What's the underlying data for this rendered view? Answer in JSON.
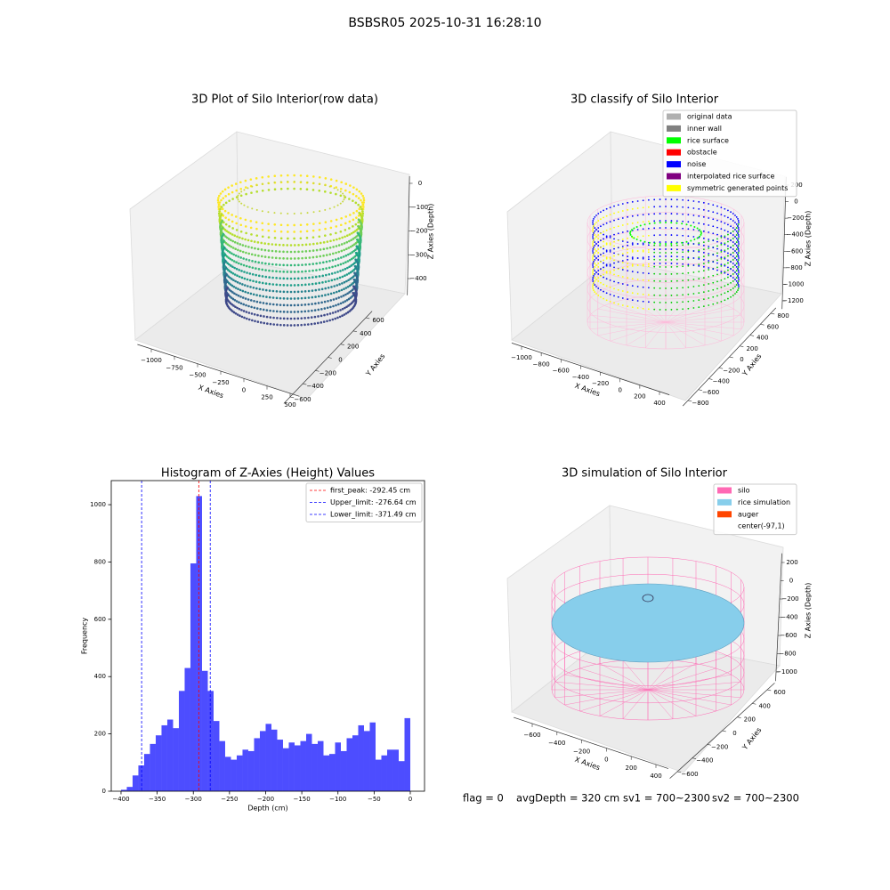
{
  "title": "BSBSR05 2025-10-31 16:28:10",
  "chart_data": [
    {
      "type": "scatter3d",
      "title": "3D Plot of Silo Interior(row data)",
      "xlabel": "X Axies",
      "ylabel": "Y Axies",
      "zlabel": "Z Axies (Depth)",
      "xlim": [
        -1150,
        600
      ],
      "ylim": [
        -700,
        700
      ],
      "zlim": [
        -470,
        30
      ],
      "xticks": [
        {
          "value": -1000,
          "label": "−1000"
        },
        {
          "value": -750,
          "label": "−750"
        },
        {
          "value": -500,
          "label": "−500"
        },
        {
          "value": -250,
          "label": "−250"
        },
        0,
        250,
        500
      ],
      "yticks": [
        {
          "value": -600,
          "label": "−600"
        },
        {
          "value": -400,
          "label": "−400"
        },
        {
          "value": -200,
          "label": "−200"
        },
        0,
        200,
        400,
        600
      ],
      "zticks": [
        0,
        {
          "value": -100,
          "label": "−100"
        },
        {
          "value": -200,
          "label": "−200"
        },
        {
          "value": -300,
          "label": "−300"
        },
        {
          "value": -400,
          "label": "−400"
        }
      ]
    },
    {
      "type": "scatter3d",
      "title": "3D classify of Silo Interior",
      "xlabel": "X Axies",
      "ylabel": "Y Axies",
      "zlabel": "Z Axies (Depth)",
      "xlim": [
        -1100,
        500
      ],
      "ylim": [
        -900,
        900
      ],
      "zlim": [
        -1300,
        300
      ],
      "xticks": [
        {
          "value": -1000,
          "label": "−1000"
        },
        {
          "value": -800,
          "label": "−800"
        },
        {
          "value": -600,
          "label": "−600"
        },
        {
          "value": -400,
          "label": "−400"
        },
        {
          "value": -200,
          "label": "−200"
        },
        0,
        200,
        400
      ],
      "yticks": [
        {
          "value": -800,
          "label": "−800"
        },
        {
          "value": -600,
          "label": "−600"
        },
        {
          "value": -400,
          "label": "−400"
        },
        {
          "value": -200,
          "label": "−200"
        },
        0,
        200,
        400,
        600,
        800
      ],
      "zticks": [
        200,
        0,
        {
          "value": -200,
          "label": "−200"
        },
        {
          "value": -400,
          "label": "−400"
        },
        {
          "value": -600,
          "label": "−600"
        },
        {
          "value": -800,
          "label": "−800"
        },
        {
          "value": -1000,
          "label": "−1000"
        },
        {
          "value": -1200,
          "label": "−1200"
        }
      ],
      "legend": [
        {
          "name": "original data",
          "color": "#b0b0b0"
        },
        {
          "name": "inner wall",
          "color": "#808080"
        },
        {
          "name": "rice surface",
          "color": "#00ff00"
        },
        {
          "name": "obstacle",
          "color": "#ff0000"
        },
        {
          "name": "noise",
          "color": "#0000ff"
        },
        {
          "name": "interpolated rice surface",
          "color": "#800080"
        },
        {
          "name": "symmetric generated points",
          "color": "#ffff00"
        }
      ]
    },
    {
      "type": "histogram",
      "title": "Histogram of Z-Axies (Height) Values",
      "xlabel": "Depth (cm)",
      "ylabel": "Frequency",
      "color": "#4d4dff",
      "bins": [
        -400,
        -392,
        -384,
        -376,
        -368,
        -360,
        -352,
        -344,
        -336,
        -328,
        -320,
        -312,
        -304,
        -296,
        -288,
        -280,
        -272,
        -264,
        -256,
        -248,
        -240,
        -232,
        -224,
        -216,
        -208,
        -200,
        -192,
        -184,
        -176,
        -168,
        -160,
        -152,
        -144,
        -136,
        -128,
        -120,
        -112,
        -104,
        -96,
        -88,
        -80,
        -72,
        -64,
        -56,
        -48,
        -40,
        -32,
        -24,
        -16,
        -8,
        0
      ],
      "counts": [
        5,
        15,
        55,
        90,
        130,
        165,
        195,
        230,
        250,
        220,
        350,
        430,
        795,
        1030,
        420,
        350,
        245,
        175,
        120,
        110,
        125,
        145,
        140,
        185,
        210,
        235,
        215,
        180,
        150,
        170,
        160,
        175,
        200,
        165,
        175,
        125,
        130,
        170,
        140,
        185,
        195,
        230,
        210,
        240,
        110,
        125,
        145,
        145,
        105,
        255
      ],
      "xlim": [
        -413.5,
        19.7
      ],
      "ylim": [
        0,
        1084
      ],
      "xticks": [
        {
          "value": -400,
          "label": "−400"
        },
        {
          "value": -350,
          "label": "−350"
        },
        {
          "value": -300,
          "label": "−300"
        },
        {
          "value": -250,
          "label": "−250"
        },
        {
          "value": -200,
          "label": "−200"
        },
        {
          "value": -150,
          "label": "−150"
        },
        {
          "value": -100,
          "label": "−100"
        },
        {
          "value": -50,
          "label": "−50"
        },
        0
      ],
      "yticks": [
        0,
        200,
        400,
        600,
        800,
        1000
      ],
      "lines": [
        {
          "name": "first_peak: -292.45 cm",
          "value": -292.45,
          "color": "#ff0000"
        },
        {
          "name": "Upper_limit: -276.64 cm",
          "value": -276.64,
          "color": "#0000ff"
        },
        {
          "name": "Lower_limit: -371.49 cm",
          "value": -371.49,
          "color": "#0000ff"
        }
      ],
      "legend_position": "upper right"
    },
    {
      "type": "scatter3d",
      "title": "3D simulation of Silo Interior",
      "xlabel": "X Axies",
      "ylabel": "Y Axies",
      "zlabel": "Z Axies (Depth)",
      "xlim": [
        -750,
        500
      ],
      "ylim": [
        -700,
        700
      ],
      "zlim": [
        -1100,
        300
      ],
      "xticks": [
        {
          "value": -600,
          "label": "−600"
        },
        {
          "value": -400,
          "label": "−400"
        },
        {
          "value": -200,
          "label": "−200"
        },
        0,
        200,
        400
      ],
      "yticks": [
        {
          "value": -600,
          "label": "−600"
        },
        {
          "value": -400,
          "label": "−400"
        },
        {
          "value": -200,
          "label": "−200"
        },
        0,
        200,
        400,
        600
      ],
      "zticks": [
        200,
        0,
        {
          "value": -200,
          "label": "−200"
        },
        {
          "value": -400,
          "label": "−400"
        },
        {
          "value": -600,
          "label": "−600"
        },
        {
          "value": -800,
          "label": "−800"
        },
        {
          "value": -1000,
          "label": "−1000"
        }
      ],
      "legend": [
        {
          "name": "silo",
          "color": "#ff69b4"
        },
        {
          "name": "rice simulation",
          "color": "#87ceeb"
        },
        {
          "name": "auger",
          "color": "#ff4500"
        },
        {
          "name": "center(-97,1)"
        }
      ]
    }
  ],
  "status": [
    "flag = 0",
    "avgDepth = 320 cm",
    "sv1 = 700~2300",
    "sv2 = 700~2300"
  ]
}
